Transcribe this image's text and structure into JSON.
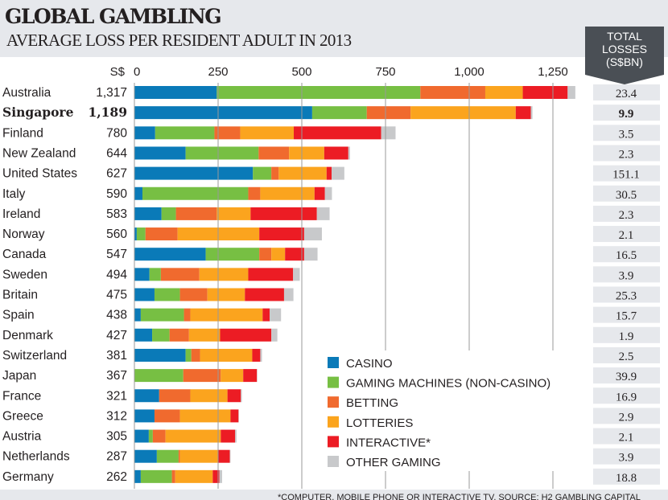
{
  "header": {
    "title": "GLOBAL GAMBLING",
    "subtitle": "AVERAGE  LOSS PER RESIDENT ADULT IN 2013",
    "total_label": [
      "TOTAL",
      "LOSSES",
      "(S$BN)"
    ]
  },
  "footnote": "*COMPUTER, MOBILE PHONE OR INTERACTIVE TV. SOURCE: H2 GAMBLING CAPITAL",
  "chart_data": {
    "type": "bar",
    "orientation": "horizontal",
    "stacked": true,
    "xlabel": "S$",
    "xlim": [
      0,
      1300
    ],
    "xticks": [
      "0",
      "250",
      "500",
      "750",
      "1,000",
      "1,250"
    ],
    "grid": true,
    "legend": "bottom-right",
    "categories": [
      "Australia",
      "Singapore",
      "Finland",
      "New Zealand",
      "United States",
      "Italy",
      "Ireland",
      "Norway",
      "Canada",
      "Sweden",
      "Britain",
      "Spain",
      "Denmark",
      "Switzerland",
      "Japan",
      "France",
      "Greece",
      "Austria",
      "Netherlands",
      "Germany"
    ],
    "highlight": "Singapore",
    "totals_label": [
      "1,317",
      "1,189",
      "780",
      "644",
      "627",
      "590",
      "583",
      "560",
      "547",
      "494",
      "475",
      "438",
      "427",
      "381",
      "367",
      "321",
      "312",
      "305",
      "287",
      "262"
    ],
    "total_losses_sbn": [
      "23.4",
      "9.9",
      "3.5",
      "2.3",
      "151.1",
      "30.5",
      "2.3",
      "2.1",
      "16.5",
      "3.9",
      "25.3",
      "15.7",
      "1.9",
      "2.5",
      "39.9",
      "16.9",
      "2.9",
      "2.1",
      "3.9",
      "18.8"
    ],
    "series": [
      {
        "name": "CASINO",
        "color": "#0a7ab8",
        "values": [
          246,
          531,
          62,
          153,
          354,
          24,
          81,
          7,
          213,
          45,
          60,
          19,
          53,
          153,
          0,
          74,
          60,
          43,
          67,
          19
        ]
      },
      {
        "name": "GAMING MACHINES (NON-CASINO)",
        "color": "#77bf43",
        "values": [
          608,
          163,
          177,
          218,
          55,
          316,
          43,
          26,
          160,
          34,
          76,
          129,
          52,
          17,
          146,
          0,
          0,
          12,
          65,
          93
        ]
      },
      {
        "name": "BETTING",
        "color": "#f06a2e",
        "values": [
          194,
          131,
          77,
          91,
          22,
          36,
          122,
          96,
          36,
          115,
          82,
          19,
          58,
          26,
          112,
          93,
          76,
          38,
          4,
          10
        ]
      },
      {
        "name": "LOTTERIES",
        "color": "#fba41e",
        "values": [
          112,
          314,
          160,
          105,
          143,
          162,
          101,
          244,
          41,
          146,
          112,
          216,
          93,
          156,
          67,
          111,
          151,
          165,
          115,
          112
        ]
      },
      {
        "name": "INTERACTIVE*",
        "color": "#ec1c24",
        "values": [
          134,
          45,
          261,
          72,
          15,
          31,
          198,
          134,
          57,
          134,
          117,
          21,
          153,
          24,
          41,
          40,
          24,
          43,
          34,
          20
        ]
      },
      {
        "name": "OTHER GAMING",
        "color": "#c8c9cb",
        "values": [
          23,
          5,
          43,
          5,
          38,
          21,
          38,
          53,
          40,
          20,
          28,
          34,
          18,
          5,
          1,
          3,
          1,
          4,
          2,
          8
        ]
      }
    ]
  }
}
